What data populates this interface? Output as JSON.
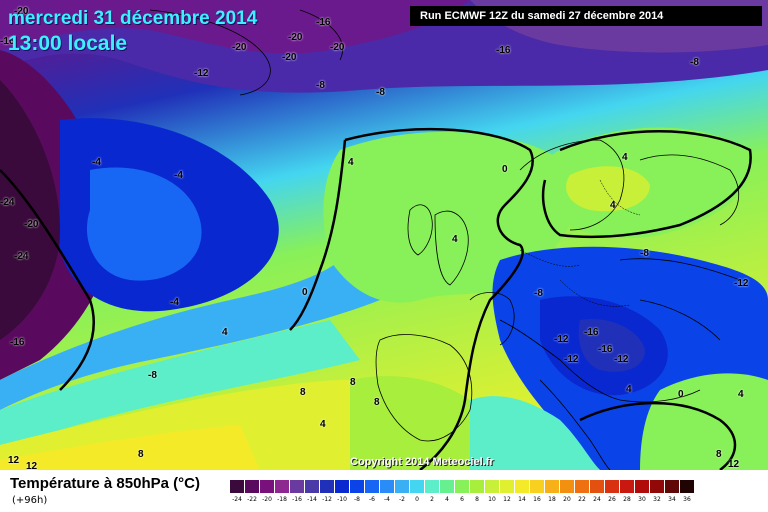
{
  "header": {
    "date": "mercredi 31 décembre 2014",
    "time": "13:00 locale",
    "run": "Run ECMWF 12Z du samedi 27 décembre 2014"
  },
  "map": {
    "contour_labels": [
      "-20",
      "-16",
      "-20",
      "-20",
      "-20",
      "-20",
      "-16",
      "-12",
      "-8",
      "-16",
      "-8",
      "-8",
      "-4",
      "-24",
      "-20",
      "-24",
      "-4",
      "0",
      "0",
      "4",
      "4",
      "4",
      "-8",
      "-12",
      "-8",
      "-12",
      "-16",
      "-12",
      "-12",
      "-16",
      "4",
      "0",
      "-4",
      "4",
      "4",
      "-16",
      "-8",
      "8",
      "8",
      "8",
      "4",
      "8",
      "12",
      "12",
      "8",
      "12",
      "4"
    ],
    "copyright": "Copyright 2014 Meteociel.fr"
  },
  "footer": {
    "parameter": "Température à 850hPa (°C)",
    "lead_time": "(+96h)"
  },
  "legend": {
    "ticks": [
      "-24",
      "-22",
      "-20",
      "-18",
      "-16",
      "-14",
      "-12",
      "-10",
      "-8",
      "-6",
      "-4",
      "-2",
      "0",
      "2",
      "4",
      "6",
      "8",
      "10",
      "12",
      "14",
      "16",
      "18",
      "20",
      "22",
      "24",
      "26",
      "28",
      "30",
      "32",
      "34",
      "36"
    ],
    "colors": [
      "#3a0a3c",
      "#5a0a5e",
      "#7a107c",
      "#8e2890",
      "#6a3aa0",
      "#4a3aa8",
      "#2030b8",
      "#0a28d0",
      "#0a44e8",
      "#1866f4",
      "#2a8cf6",
      "#3ab0f4",
      "#44d6f0",
      "#5ceec8",
      "#66f090",
      "#88f058",
      "#a8ee3c",
      "#c8f038",
      "#e0f030",
      "#f4ea28",
      "#f8d020",
      "#f8b018",
      "#f49010",
      "#ee7010",
      "#e45010",
      "#d83010",
      "#c81810",
      "#b00a0a",
      "#900808",
      "#600808",
      "#200404"
    ]
  }
}
